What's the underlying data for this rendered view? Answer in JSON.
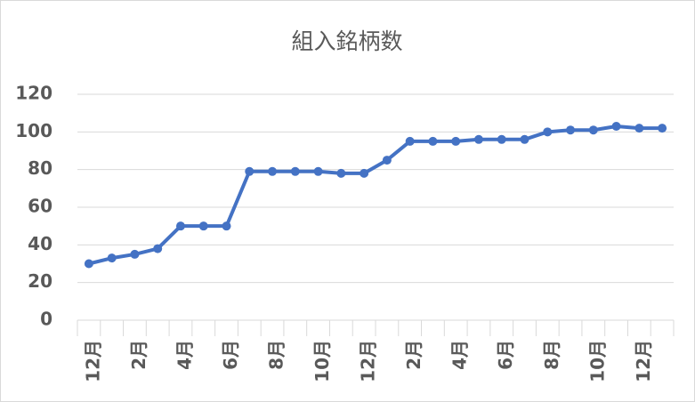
{
  "chart_data": {
    "type": "line",
    "title": "組入銘柄数",
    "categories": [
      "12月",
      null,
      "2月",
      null,
      "4月",
      null,
      "6月",
      null,
      "8月",
      null,
      "10月",
      null,
      "12月",
      null,
      "2月",
      null,
      "4月",
      null,
      "6月",
      null,
      "8月",
      null,
      "10月",
      null,
      "12月",
      null
    ],
    "values": [
      30,
      33,
      35,
      38,
      50,
      50,
      50,
      79,
      79,
      79,
      79,
      78,
      78,
      85,
      95,
      95,
      95,
      96,
      96,
      96,
      100,
      101,
      101,
      103,
      102,
      102
    ],
    "color": "#4472c4",
    "ylim": [
      0,
      120
    ],
    "yticks": [
      0,
      20,
      40,
      60,
      80,
      100,
      120
    ],
    "grid": true
  }
}
